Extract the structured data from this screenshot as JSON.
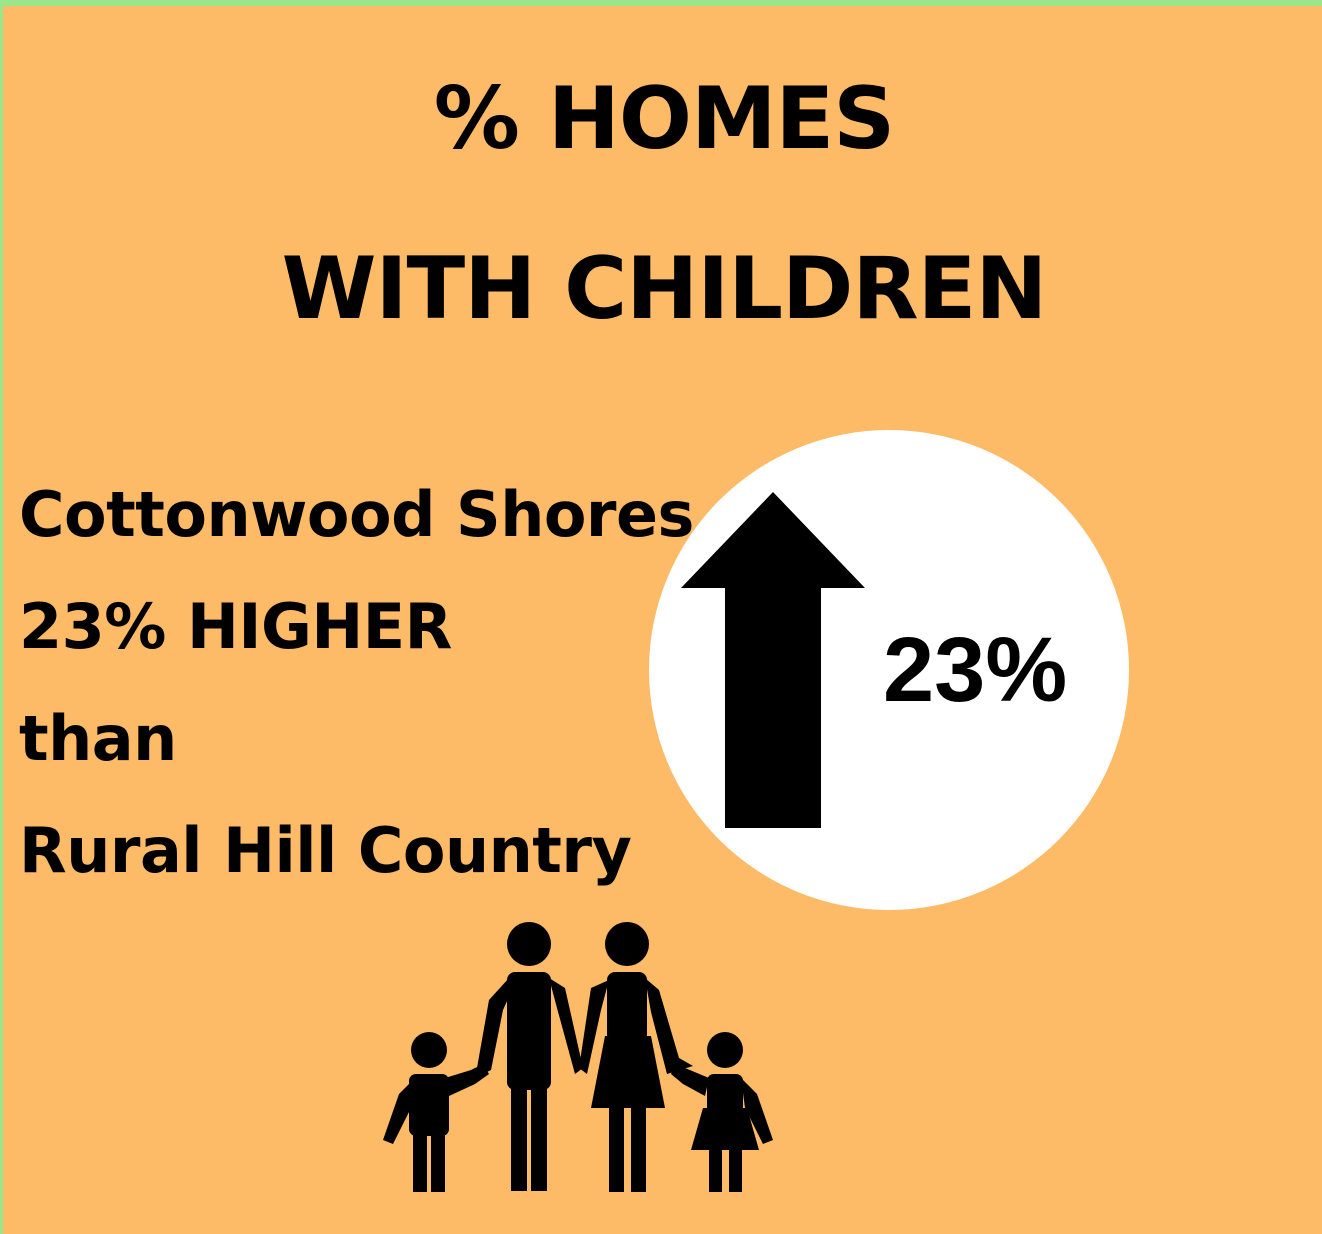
{
  "title": {
    "line1": "% HOMES",
    "line2": "WITH CHILDREN"
  },
  "comparison": {
    "line1": "Cottonwood Shores",
    "line2": "23% HIGHER",
    "line3": "than",
    "line4": "Rural Hill Country"
  },
  "badge": {
    "value": "23%",
    "direction": "up",
    "icon": "up-arrow-icon"
  },
  "illustration": {
    "icon": "family-icon"
  },
  "colors": {
    "background": "#fdba67",
    "border": "#9be58a",
    "badge": "#ffffff",
    "ink": "#000000"
  }
}
